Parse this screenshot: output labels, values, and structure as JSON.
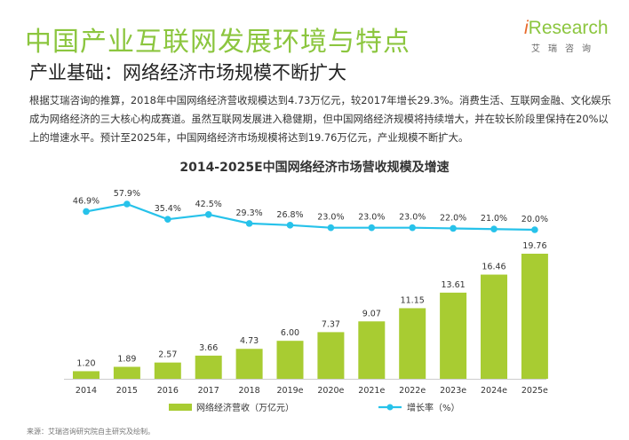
{
  "header": {
    "title": "中国产业互联网发展环境与特点",
    "subtitle": "产业基础：网络经济市场规模不断扩大"
  },
  "logo": {
    "brand_i": "i",
    "brand_rest": "Research",
    "brand_cn": "艾瑞咨询"
  },
  "intro": {
    "text": "根据艾瑞咨询的推算，2018年中国网络经济营收规模达到4.73万亿元，较2017年增长29.3%。消费生活、互联网金融、文化娱乐成为网络经济的三大核心构成赛道。虽然互联网发展进入稳健期，但中国网络经济规模将持续增大，并在较长阶段里保持在20%以上的增速水平。预计至2025年，中国网络经济市场规模将达到19.76万亿元，产业规模不断扩大。"
  },
  "chart_data": {
    "type": "bar",
    "title": "2014-2025E中国网络经济市场营收规模及增速",
    "categories": [
      "2014",
      "2015",
      "2016",
      "2017",
      "2018",
      "2019e",
      "2020e",
      "2021e",
      "2022e",
      "2023e",
      "2024e",
      "2025e"
    ],
    "series": [
      {
        "name": "网络经济营收（万亿元）",
        "type": "bar",
        "color": "#a8cc32",
        "values": [
          1.2,
          1.89,
          2.57,
          3.66,
          4.73,
          6.0,
          7.37,
          9.07,
          11.15,
          13.61,
          16.46,
          19.76
        ],
        "labels": [
          "1.20",
          "1.89",
          "2.57",
          "3.66",
          "4.73",
          "6.00",
          "7.37",
          "9.07",
          "11.15",
          "13.61",
          "16.46",
          "19.76"
        ]
      },
      {
        "name": "增长率（%）",
        "type": "line",
        "color": "#27c2ea",
        "values": [
          46.9,
          57.9,
          35.4,
          42.5,
          29.3,
          26.8,
          23.0,
          23.0,
          23.0,
          22.0,
          21.0,
          20.0
        ],
        "labels": [
          "46.9%",
          "57.9%",
          "35.4%",
          "42.5%",
          "29.3%",
          "26.8%",
          "23.0%",
          "23.0%",
          "23.0%",
          "22.0%",
          "21.0%",
          "20.0%"
        ]
      }
    ],
    "legend_position": "bottom",
    "grid": false
  },
  "footer": {
    "source": "来源：艾瑞咨询研究院自主研究及绘制。"
  }
}
